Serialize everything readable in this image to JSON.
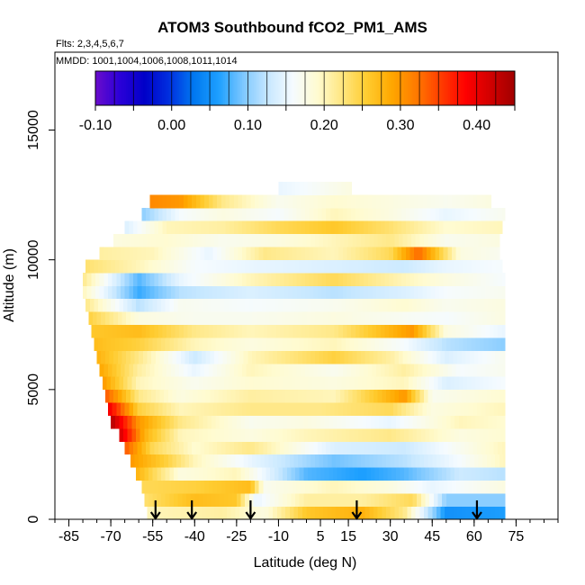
{
  "chart_data": {
    "type": "heatmap",
    "title": "ATOM3 Southbound fCO2_PM1_AMS",
    "flights_note": "Flts: 2,3,4,5,6,7",
    "dates_note": "MMDD: 1001,1004,1006,1008,1011,1014",
    "xlabel": "Latitude (deg N)",
    "ylabel": "Altitude (m)",
    "xlim": [
      -90,
      90
    ],
    "ylim": [
      0,
      18000
    ],
    "x_tick_values": [
      -85,
      -70,
      -55,
      -40,
      -25,
      -10,
      5,
      15,
      30,
      45,
      60,
      75
    ],
    "x_tick_labels": [
      "-85",
      "-70",
      "-55",
      "-40",
      "-25",
      "-10",
      "5",
      "15",
      "30",
      "45",
      "60",
      "75"
    ],
    "y_tick_values": [
      0,
      5000,
      10000,
      15000
    ],
    "y_tick_labels": [
      "0",
      "5000",
      "10000",
      "15000"
    ],
    "colorbar": {
      "min": -0.1,
      "max": 0.45,
      "tick_values": [
        -0.1,
        0.0,
        0.1,
        0.2,
        0.3,
        0.4
      ],
      "tick_labels": [
        "-0.10",
        "0.00",
        "0.10",
        "0.20",
        "0.30",
        "0.40"
      ],
      "colors": [
        "#6a0dcc",
        "#2a00d8",
        "#0000c8",
        "#0030e0",
        "#0078f0",
        "#1ea0ff",
        "#7ec8ff",
        "#c8e8ff",
        "#f5fbff",
        "#fffbd0",
        "#ffe680",
        "#ffcc30",
        "#ffa800",
        "#ff7a00",
        "#ff3c00",
        "#ff0000",
        "#d20000",
        "#a00000"
      ]
    },
    "profile_markers_latitude": [
      -54,
      -41,
      -20,
      18,
      61
    ],
    "altitude_bands_m": [
      {
        "y0": 0,
        "y1": 500,
        "lat_min": -57,
        "lat_max": 71,
        "points": [
          [
            -57,
            0.2
          ],
          [
            -30,
            0.21
          ],
          [
            -15,
            0.18
          ],
          [
            0,
            0.26
          ],
          [
            20,
            0.28
          ],
          [
            35,
            0.22
          ],
          [
            50,
            0.05
          ],
          [
            71,
            0.06
          ]
        ]
      },
      {
        "y0": 500,
        "y1": 1000,
        "lat_min": -58,
        "lat_max": 71,
        "points": [
          [
            -58,
            0.23
          ],
          [
            -40,
            0.27
          ],
          [
            -25,
            0.26
          ],
          [
            -18,
            0.15
          ],
          [
            0,
            0.21
          ],
          [
            20,
            0.21
          ],
          [
            38,
            0.24
          ],
          [
            50,
            0.1
          ],
          [
            71,
            0.1
          ]
        ]
      },
      {
        "y0": 1000,
        "y1": 1500,
        "lat_min": -59,
        "lat_max": 71,
        "points": [
          [
            -59,
            0.24
          ],
          [
            -40,
            0.25
          ],
          [
            -20,
            0.27
          ],
          [
            -15,
            0.17
          ],
          [
            10,
            0.2
          ],
          [
            30,
            0.18
          ],
          [
            45,
            0.15
          ],
          [
            71,
            0.18
          ]
        ]
      },
      {
        "y0": 1500,
        "y1": 2000,
        "lat_min": -61,
        "lat_max": 71,
        "points": [
          [
            -61,
            0.28
          ],
          [
            -45,
            0.18
          ],
          [
            -25,
            0.2
          ],
          [
            0,
            0.08
          ],
          [
            20,
            0.06
          ],
          [
            35,
            0.08
          ],
          [
            55,
            0.13
          ],
          [
            71,
            0.12
          ]
        ]
      },
      {
        "y0": 2000,
        "y1": 2500,
        "lat_min": -63,
        "lat_max": 71,
        "points": [
          [
            -63,
            0.3
          ],
          [
            -50,
            0.25
          ],
          [
            -40,
            0.2
          ],
          [
            -20,
            0.15
          ],
          [
            10,
            0.09
          ],
          [
            35,
            0.12
          ],
          [
            55,
            0.16
          ],
          [
            71,
            0.2
          ]
        ]
      },
      {
        "y0": 2500,
        "y1": 3000,
        "lat_min": -65,
        "lat_max": 71,
        "points": [
          [
            -65,
            0.34
          ],
          [
            -55,
            0.24
          ],
          [
            -40,
            0.19
          ],
          [
            -20,
            0.22
          ],
          [
            10,
            0.14
          ],
          [
            35,
            0.13
          ],
          [
            55,
            0.17
          ],
          [
            71,
            0.2
          ]
        ]
      },
      {
        "y0": 3000,
        "y1": 3500,
        "lat_min": -67,
        "lat_max": 71,
        "points": [
          [
            -67,
            0.42
          ],
          [
            -58,
            0.28
          ],
          [
            -45,
            0.2
          ],
          [
            -20,
            0.18
          ],
          [
            0,
            0.2
          ],
          [
            30,
            0.22
          ],
          [
            55,
            0.18
          ],
          [
            71,
            0.19
          ]
        ]
      },
      {
        "y0": 3500,
        "y1": 4000,
        "lat_min": -70,
        "lat_max": 71,
        "points": [
          [
            -70,
            0.44
          ],
          [
            -60,
            0.3
          ],
          [
            -45,
            0.22
          ],
          [
            -20,
            0.17
          ],
          [
            0,
            0.18
          ],
          [
            30,
            0.15
          ],
          [
            55,
            0.2
          ],
          [
            71,
            0.19
          ]
        ]
      },
      {
        "y0": 4000,
        "y1": 4500,
        "lat_min": -71,
        "lat_max": 71,
        "points": [
          [
            -71,
            0.4
          ],
          [
            -60,
            0.25
          ],
          [
            -45,
            0.2
          ],
          [
            -20,
            0.22
          ],
          [
            5,
            0.22
          ],
          [
            30,
            0.24
          ],
          [
            45,
            0.18
          ],
          [
            71,
            0.2
          ]
        ]
      },
      {
        "y0": 4500,
        "y1": 5000,
        "lat_min": -72,
        "lat_max": 71,
        "points": [
          [
            -72,
            0.34
          ],
          [
            -60,
            0.22
          ],
          [
            -45,
            0.18
          ],
          [
            -20,
            0.21
          ],
          [
            10,
            0.2
          ],
          [
            35,
            0.3
          ],
          [
            45,
            0.17
          ],
          [
            71,
            0.19
          ]
        ]
      },
      {
        "y0": 5000,
        "y1": 5500,
        "lat_min": -73,
        "lat_max": 71,
        "points": [
          [
            -73,
            0.3
          ],
          [
            -60,
            0.2
          ],
          [
            -40,
            0.17
          ],
          [
            -20,
            0.19
          ],
          [
            10,
            0.18
          ],
          [
            35,
            0.2
          ],
          [
            50,
            0.14
          ],
          [
            71,
            0.16
          ]
        ]
      },
      {
        "y0": 5500,
        "y1": 6000,
        "lat_min": -74,
        "lat_max": 71,
        "points": [
          [
            -74,
            0.29
          ],
          [
            -60,
            0.21
          ],
          [
            -40,
            0.15
          ],
          [
            -20,
            0.2
          ],
          [
            10,
            0.17
          ],
          [
            35,
            0.21
          ],
          [
            55,
            0.16
          ],
          [
            71,
            0.17
          ]
        ]
      },
      {
        "y0": 6000,
        "y1": 6500,
        "lat_min": -75,
        "lat_max": 71,
        "points": [
          [
            -75,
            0.28
          ],
          [
            -60,
            0.22
          ],
          [
            -40,
            0.13
          ],
          [
            -20,
            0.2
          ],
          [
            10,
            0.25
          ],
          [
            30,
            0.21
          ],
          [
            50,
            0.14
          ],
          [
            71,
            0.17
          ]
        ]
      },
      {
        "y0": 6500,
        "y1": 7000,
        "lat_min": -76,
        "lat_max": 71,
        "points": [
          [
            -76,
            0.27
          ],
          [
            -60,
            0.25
          ],
          [
            -40,
            0.2
          ],
          [
            -20,
            0.18
          ],
          [
            10,
            0.2
          ],
          [
            35,
            0.16
          ],
          [
            50,
            0.12
          ],
          [
            71,
            0.1
          ]
        ]
      },
      {
        "y0": 7000,
        "y1": 7500,
        "lat_min": -77,
        "lat_max": 71,
        "points": [
          [
            -77,
            0.26
          ],
          [
            -60,
            0.27
          ],
          [
            -40,
            0.22
          ],
          [
            -20,
            0.2
          ],
          [
            10,
            0.22
          ],
          [
            38,
            0.3
          ],
          [
            50,
            0.18
          ],
          [
            71,
            0.15
          ]
        ]
      },
      {
        "y0": 7500,
        "y1": 8000,
        "lat_min": -78,
        "lat_max": 71,
        "points": [
          [
            -78,
            0.25
          ],
          [
            -60,
            0.18
          ],
          [
            -40,
            0.17
          ],
          [
            -20,
            0.17
          ],
          [
            10,
            0.18
          ],
          [
            30,
            0.17
          ],
          [
            50,
            0.16
          ],
          [
            71,
            0.18
          ]
        ]
      },
      {
        "y0": 8000,
        "y1": 8500,
        "lat_min": -79,
        "lat_max": 71,
        "points": [
          [
            -79,
            0.22
          ],
          [
            -60,
            0.12
          ],
          [
            -45,
            0.17
          ],
          [
            -20,
            0.16
          ],
          [
            10,
            0.17
          ],
          [
            35,
            0.19
          ],
          [
            50,
            0.17
          ],
          [
            71,
            0.18
          ]
        ]
      },
      {
        "y0": 8500,
        "y1": 9000,
        "lat_min": -80,
        "lat_max": 71,
        "points": [
          [
            -80,
            0.2
          ],
          [
            -60,
            0.07
          ],
          [
            -45,
            0.12
          ],
          [
            -20,
            0.14
          ],
          [
            10,
            0.12
          ],
          [
            35,
            0.14
          ],
          [
            50,
            0.16
          ],
          [
            71,
            0.17
          ]
        ]
      },
      {
        "y0": 9000,
        "y1": 9500,
        "lat_min": -80,
        "lat_max": 71,
        "points": [
          [
            -80,
            0.22
          ],
          [
            -60,
            0.08
          ],
          [
            -45,
            0.15
          ],
          [
            -20,
            0.2
          ],
          [
            10,
            0.24
          ],
          [
            35,
            0.2
          ],
          [
            50,
            0.18
          ],
          [
            71,
            0.16
          ]
        ]
      },
      {
        "y0": 9500,
        "y1": 10000,
        "lat_min": -79,
        "lat_max": 70,
        "points": [
          [
            -79,
            0.23
          ],
          [
            -60,
            0.2
          ],
          [
            -40,
            0.16
          ],
          [
            -20,
            0.15
          ],
          [
            10,
            0.14
          ],
          [
            35,
            0.13
          ],
          [
            50,
            0.15
          ],
          [
            70,
            0.16
          ]
        ]
      },
      {
        "y0": 10000,
        "y1": 10500,
        "lat_min": -74,
        "lat_max": 69,
        "points": [
          [
            -74,
            0.21
          ],
          [
            -55,
            0.2
          ],
          [
            -35,
            0.15
          ],
          [
            -15,
            0.22
          ],
          [
            10,
            0.2
          ],
          [
            30,
            0.24
          ],
          [
            40,
            0.33
          ],
          [
            55,
            0.18
          ],
          [
            69,
            0.17
          ]
        ]
      },
      {
        "y0": 10500,
        "y1": 11000,
        "lat_min": -69,
        "lat_max": 69,
        "points": [
          [
            -69,
            0.18
          ],
          [
            -50,
            0.19
          ],
          [
            -30,
            0.17
          ],
          [
            -10,
            0.18
          ],
          [
            10,
            0.2
          ],
          [
            30,
            0.22
          ],
          [
            50,
            0.17
          ],
          [
            69,
            0.18
          ]
        ]
      },
      {
        "y0": 11000,
        "y1": 11500,
        "lat_min": -65,
        "lat_max": 70,
        "points": [
          [
            -65,
            0.14
          ],
          [
            -50,
            0.2
          ],
          [
            -30,
            0.21
          ],
          [
            -10,
            0.24
          ],
          [
            10,
            0.26
          ],
          [
            30,
            0.23
          ],
          [
            50,
            0.19
          ],
          [
            70,
            0.2
          ]
        ]
      },
      {
        "y0": 11500,
        "y1": 12000,
        "lat_min": -59,
        "lat_max": 71,
        "points": [
          [
            -59,
            0.1
          ],
          [
            -45,
            0.16
          ],
          [
            -30,
            0.18
          ],
          [
            -10,
            0.16
          ],
          [
            10,
            0.2
          ],
          [
            30,
            0.18
          ],
          [
            50,
            0.15
          ],
          [
            71,
            0.17
          ]
        ]
      },
      {
        "y0": 12000,
        "y1": 12500,
        "lat_min": -56,
        "lat_max": 66,
        "points": [
          [
            -56,
            0.31
          ],
          [
            -45,
            0.3
          ],
          [
            -30,
            0.22
          ],
          [
            -10,
            0.17
          ],
          [
            10,
            0.19
          ],
          [
            30,
            0.18
          ],
          [
            50,
            0.17
          ],
          [
            66,
            0.18
          ]
        ]
      },
      {
        "y0": 12500,
        "y1": 13000,
        "lat_min": -10,
        "lat_max": 16,
        "points": [
          [
            -10,
            0.15
          ],
          [
            0,
            0.16
          ],
          [
            16,
            0.18
          ]
        ]
      }
    ]
  }
}
